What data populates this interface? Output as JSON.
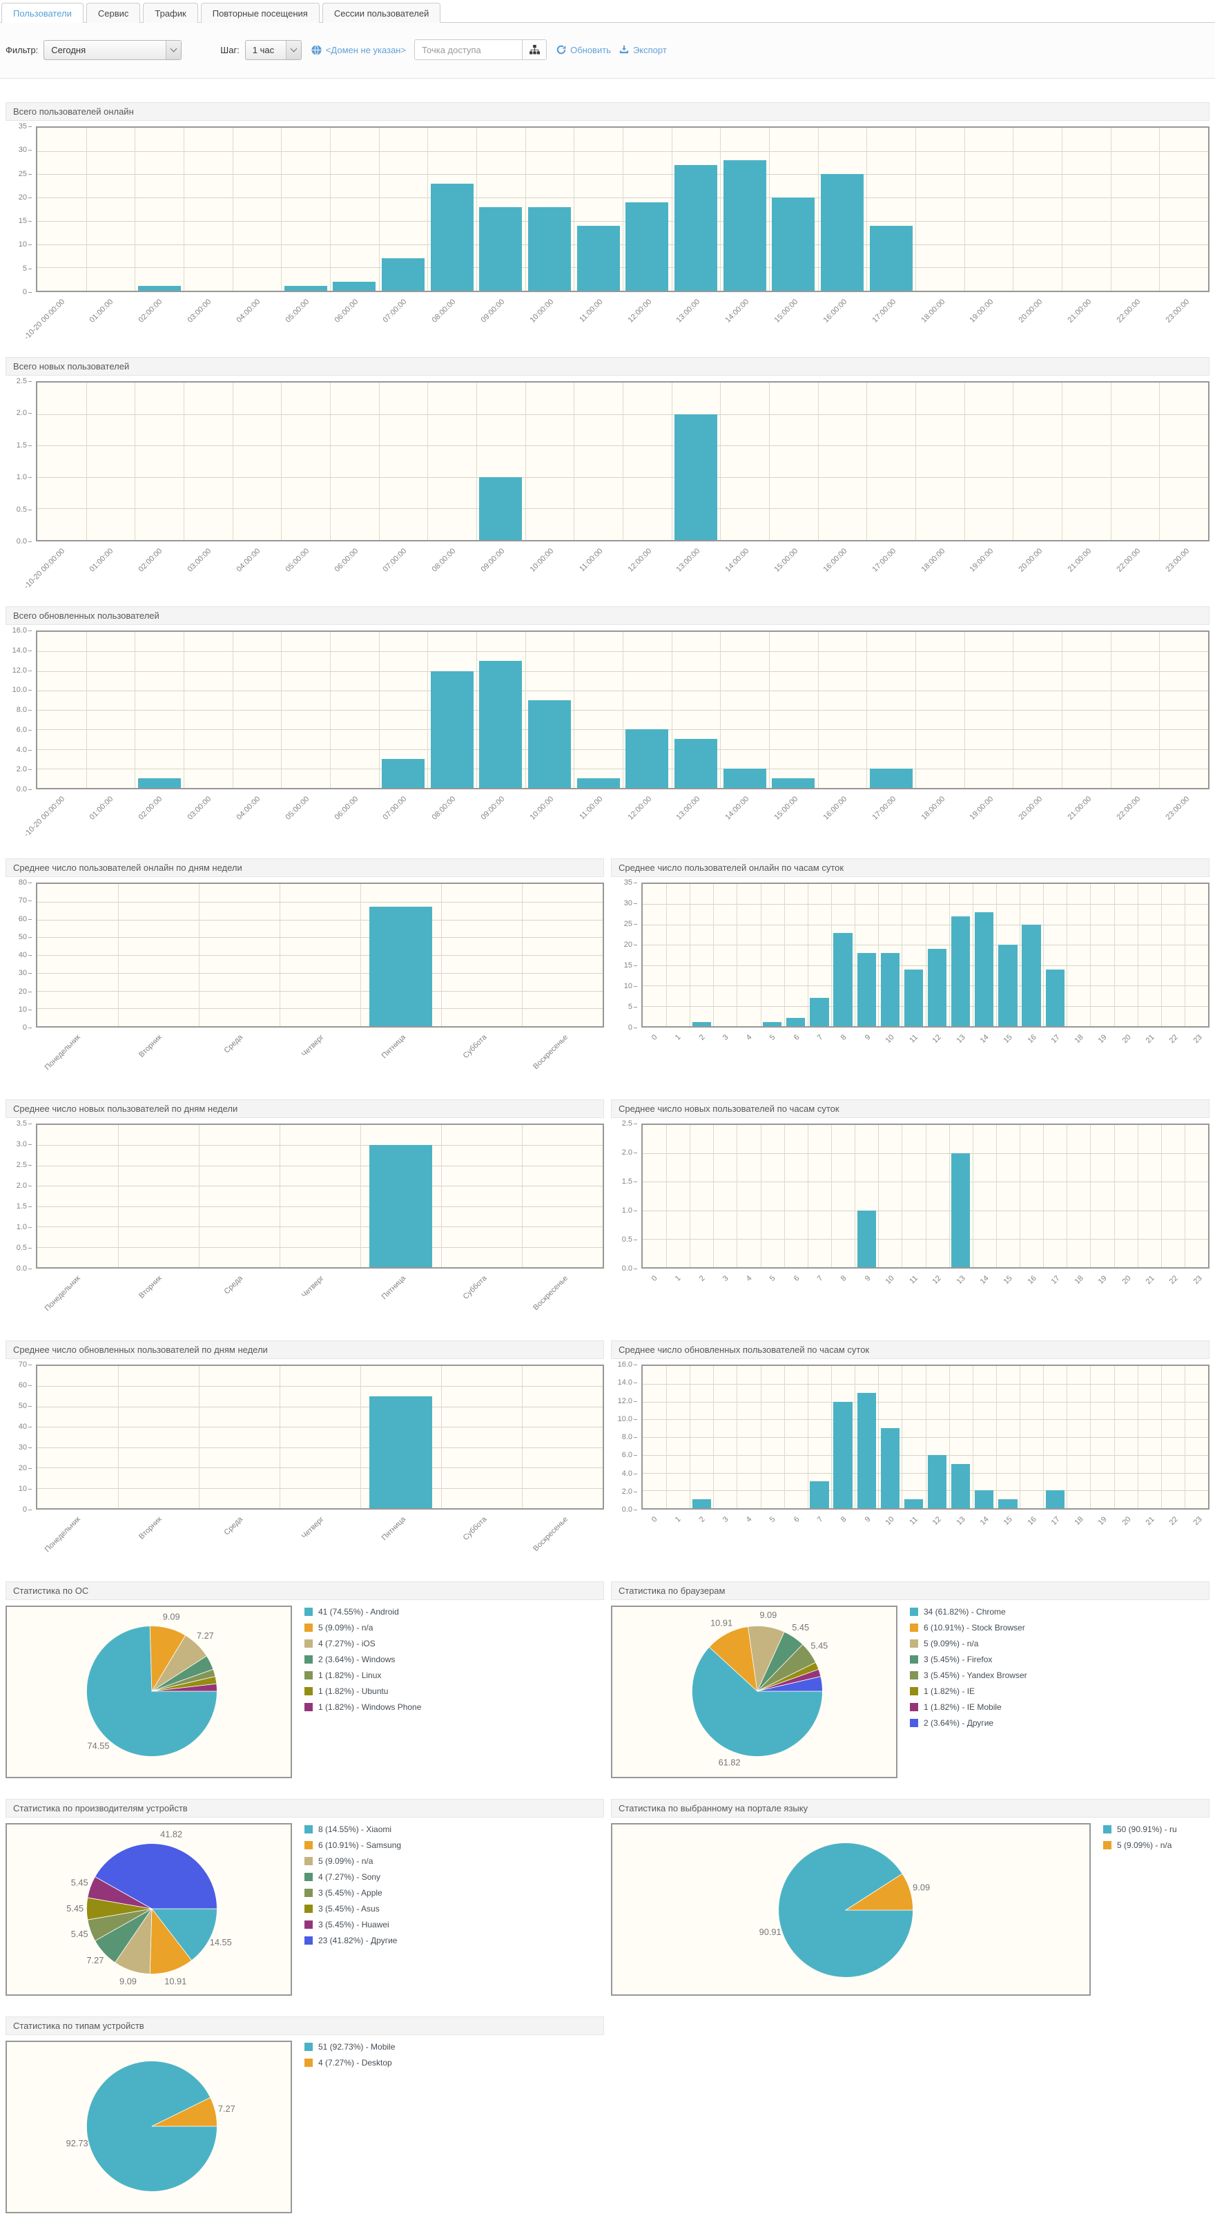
{
  "tabs": {
    "items": [
      {
        "label": "Пользователи",
        "active": true
      },
      {
        "label": "Сервис",
        "active": false
      },
      {
        "label": "Трафик",
        "active": false
      },
      {
        "label": "Повторные посещения",
        "active": false
      },
      {
        "label": "Сессии пользователей",
        "active": false
      }
    ]
  },
  "toolbar": {
    "filter_label": "Фильтр:",
    "filter_value": "Сегодня",
    "step_label": "Шаг:",
    "step_value": "1 час",
    "domain_link": "<Домен не указан>",
    "access_point_placeholder": "Точка доступа",
    "refresh_label": "Обновить",
    "export_label": "Экспорт"
  },
  "palette": [
    "#4bb2c5",
    "#eaa228",
    "#c5b47f",
    "#579575",
    "#839557",
    "#958c12",
    "#953579",
    "#4b5de4"
  ],
  "colors": {
    "bar": "#4bb2c5",
    "plot_bg": "#fffdf6",
    "accent_link": "#64a1d9"
  },
  "time_categories": [
    "-10-20 00:00:00",
    "01:00:00",
    "02:00:00",
    "03:00:00",
    "04:00:00",
    "05:00:00",
    "06:00:00",
    "07:00:00",
    "08:00:00",
    "09:00:00",
    "10:00:00",
    "11:00:00",
    "12:00:00",
    "13:00:00",
    "14:00:00",
    "15:00:00",
    "16:00:00",
    "17:00:00",
    "18:00:00",
    "19:00:00",
    "20:00:00",
    "21:00:00",
    "22:00:00",
    "23:00:00"
  ],
  "chart_data": [
    {
      "type": "bar",
      "title": "Всего пользователей онлайн",
      "categories": [
        "-10-20 00:00:00",
        "01:00:00",
        "02:00:00",
        "03:00:00",
        "04:00:00",
        "05:00:00",
        "06:00:00",
        "07:00:00",
        "08:00:00",
        "09:00:00",
        "10:00:00",
        "11:00:00",
        "12:00:00",
        "13:00:00",
        "14:00:00",
        "15:00:00",
        "16:00:00",
        "17:00:00",
        "18:00:00",
        "19:00:00",
        "20:00:00",
        "21:00:00",
        "22:00:00",
        "23:00:00"
      ],
      "values": [
        0,
        0,
        1,
        0,
        0,
        1,
        2,
        7,
        23,
        18,
        18,
        14,
        19,
        27,
        28,
        20,
        25,
        14,
        0,
        0,
        0,
        0,
        0,
        0
      ],
      "ylim": [
        0,
        35
      ],
      "ystep": 5,
      "decimals": 0,
      "grid": true,
      "legend": false
    },
    {
      "type": "bar",
      "title": "Всего новых пользователей",
      "categories": [
        "-10-20 00:00:00",
        "01:00:00",
        "02:00:00",
        "03:00:00",
        "04:00:00",
        "05:00:00",
        "06:00:00",
        "07:00:00",
        "08:00:00",
        "09:00:00",
        "10:00:00",
        "11:00:00",
        "12:00:00",
        "13:00:00",
        "14:00:00",
        "15:00:00",
        "16:00:00",
        "17:00:00",
        "18:00:00",
        "19:00:00",
        "20:00:00",
        "21:00:00",
        "22:00:00",
        "23:00:00"
      ],
      "values": [
        0,
        0,
        0,
        0,
        0,
        0,
        0,
        0,
        0,
        1,
        0,
        0,
        0,
        2,
        0,
        0,
        0,
        0,
        0,
        0,
        0,
        0,
        0,
        0
      ],
      "ylim": [
        0,
        2.5
      ],
      "ystep": 0.5,
      "decimals": 1,
      "grid": true,
      "legend": false
    },
    {
      "type": "bar",
      "title": "Всего обновленных пользователей",
      "categories": [
        "-10-20 00:00:00",
        "01:00:00",
        "02:00:00",
        "03:00:00",
        "04:00:00",
        "05:00:00",
        "06:00:00",
        "07:00:00",
        "08:00:00",
        "09:00:00",
        "10:00:00",
        "11:00:00",
        "12:00:00",
        "13:00:00",
        "14:00:00",
        "15:00:00",
        "16:00:00",
        "17:00:00",
        "18:00:00",
        "19:00:00",
        "20:00:00",
        "21:00:00",
        "22:00:00",
        "23:00:00"
      ],
      "values": [
        0,
        0,
        1,
        0,
        0,
        0,
        0,
        3,
        12,
        13,
        9,
        1,
        6,
        5,
        2,
        1,
        0,
        2,
        0,
        0,
        0,
        0,
        0,
        0
      ],
      "ylim": [
        0,
        16
      ],
      "ystep": 2,
      "decimals": 1,
      "grid": true,
      "legend": false
    },
    {
      "type": "bar",
      "title": "Среднее число пользователей онлайн по дням недели",
      "categories": [
        "Понедельник",
        "Вторник",
        "Среда",
        "Четверг",
        "Пятница",
        "Суббота",
        "Воскресенье"
      ],
      "values": [
        0,
        0,
        0,
        0,
        67,
        0,
        0
      ],
      "ylim": [
        0,
        80
      ],
      "ystep": 10,
      "decimals": 0,
      "grid": true,
      "legend": false
    },
    {
      "type": "bar",
      "title": "Среднее число пользователей онлайн по часам суток",
      "categories": [
        "0",
        "1",
        "2",
        "3",
        "4",
        "5",
        "6",
        "7",
        "8",
        "9",
        "10",
        "11",
        "12",
        "13",
        "14",
        "15",
        "16",
        "17",
        "18",
        "19",
        "20",
        "21",
        "22",
        "23"
      ],
      "values": [
        0,
        0,
        1,
        0,
        0,
        1,
        2,
        7,
        23,
        18,
        18,
        14,
        19,
        27,
        28,
        20,
        25,
        14,
        0,
        0,
        0,
        0,
        0,
        0
      ],
      "ylim": [
        0,
        35
      ],
      "ystep": 5,
      "decimals": 0,
      "grid": true,
      "legend": false
    },
    {
      "type": "bar",
      "title": "Среднее число новых пользователей по дням недели",
      "categories": [
        "Понедельник",
        "Вторник",
        "Среда",
        "Четверг",
        "Пятница",
        "Суббота",
        "Воскресенье"
      ],
      "values": [
        0,
        0,
        0,
        0,
        3,
        0,
        0
      ],
      "ylim": [
        0,
        3.5
      ],
      "ystep": 0.5,
      "decimals": 1,
      "grid": true,
      "legend": false
    },
    {
      "type": "bar",
      "title": "Среднее число новых пользователей по часам суток",
      "categories": [
        "0",
        "1",
        "2",
        "3",
        "4",
        "5",
        "6",
        "7",
        "8",
        "9",
        "10",
        "11",
        "12",
        "13",
        "14",
        "15",
        "16",
        "17",
        "18",
        "19",
        "20",
        "21",
        "22",
        "23"
      ],
      "values": [
        0,
        0,
        0,
        0,
        0,
        0,
        0,
        0,
        0,
        1,
        0,
        0,
        0,
        2,
        0,
        0,
        0,
        0,
        0,
        0,
        0,
        0,
        0,
        0
      ],
      "ylim": [
        0,
        2.5
      ],
      "ystep": 0.5,
      "decimals": 1,
      "grid": true,
      "legend": false
    },
    {
      "type": "bar",
      "title": "Среднее число обновленных пользователей по дням недели",
      "categories": [
        "Понедельник",
        "Вторник",
        "Среда",
        "Четверг",
        "Пятница",
        "Суббота",
        "Воскресенье"
      ],
      "values": [
        0,
        0,
        0,
        0,
        55,
        0,
        0
      ],
      "ylim": [
        0,
        70
      ],
      "ystep": 10,
      "decimals": 0,
      "grid": true,
      "legend": false
    },
    {
      "type": "bar",
      "title": "Среднее число обновленных пользователей по часам суток",
      "categories": [
        "0",
        "1",
        "2",
        "3",
        "4",
        "5",
        "6",
        "7",
        "8",
        "9",
        "10",
        "11",
        "12",
        "13",
        "14",
        "15",
        "16",
        "17",
        "18",
        "19",
        "20",
        "21",
        "22",
        "23"
      ],
      "values": [
        0,
        0,
        1,
        0,
        0,
        0,
        0,
        3,
        12,
        13,
        9,
        1,
        6,
        5,
        2,
        1,
        0,
        2,
        0,
        0,
        0,
        0,
        0,
        0
      ],
      "ylim": [
        0,
        16
      ],
      "ystep": 2,
      "decimals": 1,
      "grid": true,
      "legend": false
    },
    {
      "type": "pie",
      "title": "Статистика по ОС",
      "legend_position": "right",
      "label_threshold_pct": 5,
      "slices": [
        {
          "count": 41,
          "pct": 74.55,
          "name": "Android"
        },
        {
          "count": 5,
          "pct": 9.09,
          "name": "n/a"
        },
        {
          "count": 4,
          "pct": 7.27,
          "name": "iOS"
        },
        {
          "count": 2,
          "pct": 3.64,
          "name": "Windows"
        },
        {
          "count": 1,
          "pct": 1.82,
          "name": "Linux"
        },
        {
          "count": 1,
          "pct": 1.82,
          "name": "Ubuntu"
        },
        {
          "count": 1,
          "pct": 1.82,
          "name": "Windows Phone"
        }
      ]
    },
    {
      "type": "pie",
      "title": "Статистика по браузерам",
      "legend_position": "right",
      "label_threshold_pct": 5,
      "slices": [
        {
          "count": 34,
          "pct": 61.82,
          "name": "Chrome"
        },
        {
          "count": 6,
          "pct": 10.91,
          "name": "Stock Browser"
        },
        {
          "count": 5,
          "pct": 9.09,
          "name": "n/a"
        },
        {
          "count": 3,
          "pct": 5.45,
          "name": "Firefox"
        },
        {
          "count": 3,
          "pct": 5.45,
          "name": "Yandex Browser"
        },
        {
          "count": 1,
          "pct": 1.82,
          "name": "IE"
        },
        {
          "count": 1,
          "pct": 1.82,
          "name": "IE Mobile"
        },
        {
          "count": 2,
          "pct": 3.64,
          "name": "Другие"
        }
      ]
    },
    {
      "type": "pie",
      "title": "Статистика по производителям устройств",
      "legend_position": "right",
      "label_threshold_pct": 5,
      "slices": [
        {
          "count": 8,
          "pct": 14.55,
          "name": "Xiaomi"
        },
        {
          "count": 6,
          "pct": 10.91,
          "name": "Samsung"
        },
        {
          "count": 5,
          "pct": 9.09,
          "name": "n/a"
        },
        {
          "count": 4,
          "pct": 7.27,
          "name": "Sony"
        },
        {
          "count": 3,
          "pct": 5.45,
          "name": "Apple"
        },
        {
          "count": 3,
          "pct": 5.45,
          "name": "Asus"
        },
        {
          "count": 3,
          "pct": 5.45,
          "name": "Huawei"
        },
        {
          "count": 23,
          "pct": 41.82,
          "name": "Другие"
        }
      ]
    },
    {
      "type": "pie",
      "title": "Статистика по выбранному на портале языку",
      "legend_position": "right",
      "label_threshold_pct": 5,
      "slices": [
        {
          "count": 50,
          "pct": 90.91,
          "name": "ru"
        },
        {
          "count": 5,
          "pct": 9.09,
          "name": "n/a"
        }
      ]
    },
    {
      "type": "pie",
      "title": "Статистика по типам устройств",
      "legend_position": "right",
      "label_threshold_pct": 5,
      "slices": [
        {
          "count": 51,
          "pct": 92.73,
          "name": "Mobile"
        },
        {
          "count": 4,
          "pct": 7.27,
          "name": "Desktop"
        }
      ]
    }
  ]
}
